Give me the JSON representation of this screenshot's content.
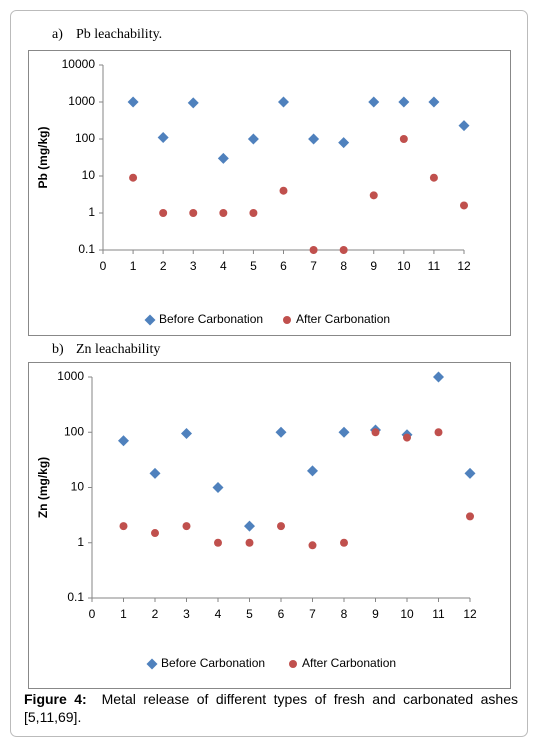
{
  "chart_data": [
    {
      "type": "scatter",
      "label": "a)",
      "title": "Pb leachability.",
      "ylabel": "Pb (mg/kg)",
      "x": [
        1,
        2,
        3,
        4,
        5,
        6,
        7,
        8,
        9,
        10,
        11,
        12
      ],
      "xlim": [
        0,
        12
      ],
      "xticks": [
        0,
        1,
        2,
        3,
        4,
        5,
        6,
        7,
        8,
        9,
        10,
        11,
        12
      ],
      "log_y": true,
      "ylim": [
        0.1,
        10000
      ],
      "yticks": [
        0.1,
        1,
        10,
        100,
        1000,
        10000
      ],
      "grid": false,
      "legend": "bottom",
      "series": [
        {
          "name": "Before Carbonation",
          "color": "#4f81bd",
          "marker": "diamond",
          "values": [
            1000,
            110,
            950,
            30,
            100,
            1000,
            100,
            80,
            1000,
            1000,
            1000,
            230
          ]
        },
        {
          "name": "After Carbonation",
          "color": "#c0504d",
          "marker": "circle",
          "values": [
            9,
            1,
            1,
            1,
            1,
            4,
            0.1,
            0.1,
            3,
            100,
            9,
            1.6
          ]
        }
      ]
    },
    {
      "type": "scatter",
      "label": "b)",
      "title": "Zn leachability",
      "ylabel": "Zn (mg/kg)",
      "x": [
        1,
        2,
        3,
        4,
        5,
        6,
        7,
        8,
        9,
        10,
        11,
        12
      ],
      "xlim": [
        0,
        12
      ],
      "xticks": [
        0,
        1,
        2,
        3,
        4,
        5,
        6,
        7,
        8,
        9,
        10,
        11,
        12
      ],
      "log_y": true,
      "ylim": [
        0.1,
        1000
      ],
      "yticks": [
        0.1,
        1,
        10,
        100,
        1000
      ],
      "grid": false,
      "legend": "bottom",
      "series": [
        {
          "name": "Before Carbonation",
          "color": "#4f81bd",
          "marker": "diamond",
          "values": [
            70,
            18,
            95,
            10,
            2,
            100,
            20,
            100,
            110,
            90,
            1000,
            18
          ]
        },
        {
          "name": "After Carbonation",
          "color": "#c0504d",
          "marker": "circle",
          "values": [
            2,
            1.5,
            2,
            1,
            1,
            2,
            0.9,
            1,
            100,
            80,
            100,
            3
          ]
        }
      ]
    }
  ],
  "caption": {
    "label": "Figure 4:",
    "text": "Metal release of different types of fresh and carbonated ashes [5,11,69]."
  }
}
